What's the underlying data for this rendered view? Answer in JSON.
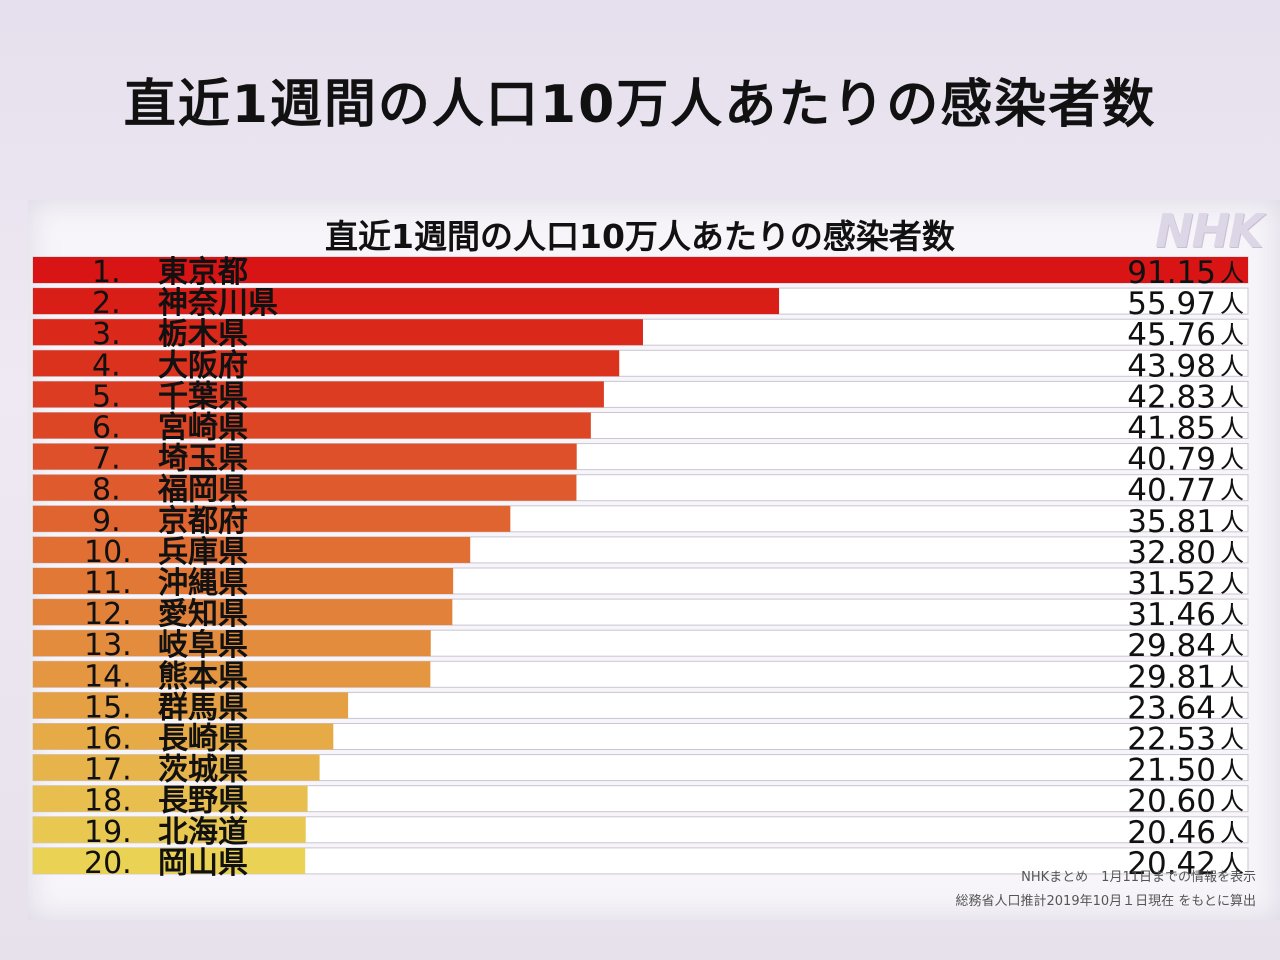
{
  "outer_title": "直近1週間の人口10万人あたりの感染者数",
  "logo": "NHK",
  "sources": [
    "NHKまとめ　1月11日までの情報を表示",
    "総務省人口推計2019年10月１日現在 をもとに算出"
  ],
  "colors": {
    "bar_start": "#d81414",
    "bar_end": "#ead255",
    "row_bg": "#ffffff",
    "row_line": "#c9c6cf"
  },
  "chart_data": {
    "type": "bar",
    "orientation": "horizontal",
    "title": "直近1週間の人口10万人あたりの感染者数",
    "unit": "人",
    "xlim": [
      0,
      91.15
    ],
    "grid": false,
    "ranks": [
      "1.",
      "2.",
      "3.",
      "4.",
      "5.",
      "6.",
      "7.",
      "8.",
      "9.",
      "10.",
      "11.",
      "12.",
      "13.",
      "14.",
      "15.",
      "16.",
      "17.",
      "18.",
      "19.",
      "20."
    ],
    "categories": [
      "東京都",
      "神奈川県",
      "栃木県",
      "大阪府",
      "千葉県",
      "宮崎県",
      "埼玉県",
      "福岡県",
      "京都府",
      "兵庫県",
      "沖縄県",
      "愛知県",
      "岐阜県",
      "熊本県",
      "群馬県",
      "長崎県",
      "茨城県",
      "長野県",
      "北海道",
      "岡山県"
    ],
    "values": [
      91.15,
      55.97,
      45.76,
      43.98,
      42.83,
      41.85,
      40.79,
      40.77,
      35.81,
      32.8,
      31.52,
      31.46,
      29.84,
      29.81,
      23.64,
      22.53,
      21.5,
      20.6,
      20.46,
      20.42
    ],
    "value_labels": [
      "91.15",
      "55.97",
      "45.76",
      "43.98",
      "42.83",
      "41.85",
      "40.79",
      "40.77",
      "35.81",
      "32.80",
      "31.52",
      "31.46",
      "29.84",
      "29.81",
      "23.64",
      "22.53",
      "21.50",
      "20.60",
      "20.46",
      "20.42"
    ]
  }
}
